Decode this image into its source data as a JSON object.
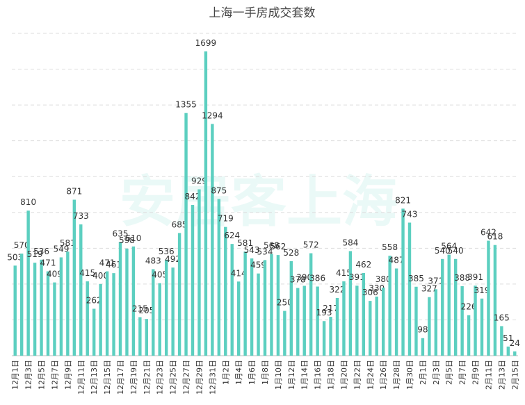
{
  "chart_data": {
    "type": "bar",
    "title": "上海一手房成交套数",
    "watermark": "安居客上海",
    "categories": [
      "12月1日",
      null,
      "12月3日",
      null,
      "12月5日",
      null,
      "12月7日",
      null,
      "12月9日",
      null,
      "12月11日",
      null,
      "12月13日",
      null,
      "12月15日",
      null,
      "12月17日",
      null,
      "12月19日",
      null,
      "12月21日",
      null,
      "12月23日",
      null,
      "12月25日",
      null,
      "12月27日",
      null,
      "12月29日",
      null,
      "12月31日",
      null,
      "1月2日",
      null,
      "1月4日",
      null,
      "1月6日",
      null,
      "1月8日",
      null,
      "1月10日",
      null,
      "1月12日",
      null,
      "1月14日",
      null,
      "1月16日",
      null,
      "1月18日",
      null,
      "1月20日",
      null,
      "1月22日",
      null,
      "1月24日",
      null,
      "1月26日",
      null,
      "1月28日",
      null,
      "1月30日",
      null,
      "2月1日",
      null,
      "2月3日",
      null,
      "2月5日",
      null,
      "2月7日",
      null,
      "2月9日",
      null,
      "2月11日",
      null,
      "2月13日",
      null,
      "2月15日"
    ],
    "values": [
      503,
      570,
      810,
      519,
      536,
      471,
      409,
      549,
      581,
      871,
      733,
      415,
      262,
      400,
      471,
      461,
      635,
      598,
      610,
      215,
      205,
      483,
      405,
      536,
      492,
      685,
      1355,
      842,
      929,
      1699,
      1294,
      875,
      719,
      624,
      414,
      581,
      543,
      459,
      534,
      568,
      562,
      250,
      528,
      378,
      390,
      572,
      386,
      193,
      217,
      322,
      415,
      584,
      391,
      462,
      306,
      330,
      380,
      558,
      487,
      821,
      743,
      385,
      98,
      327,
      371,
      540,
      564,
      540,
      388,
      226,
      391,
      319,
      642,
      618,
      165,
      51,
      24
    ],
    "color": "#5ccfc0",
    "ylim": [
      0,
      1800
    ],
    "yticks": [
      0,
      200,
      400,
      600,
      800,
      1000,
      1200,
      1400,
      1600,
      1800
    ],
    "grid": true
  }
}
